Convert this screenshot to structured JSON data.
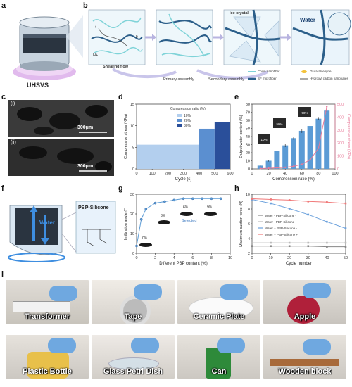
{
  "panel_labels": {
    "a": "a",
    "b": "b",
    "c": "c",
    "d": "d",
    "e": "e",
    "f": "f",
    "g": "g",
    "h": "h",
    "i": "i"
  },
  "panel_a": {
    "device_label": "UHSVS"
  },
  "panel_b": {
    "steps": [
      "Shearing flow",
      "Primary assembly",
      "Secondary assembly"
    ],
    "ice_label": "Ice crystal",
    "water_label": "Water",
    "hplus": "H+",
    "legend": [
      "Chitin nanofiber",
      "Glutaraldehyde",
      "SF microfiber",
      "Hydroxyl carbon nanotubes"
    ],
    "colors": {
      "chitin": "#7fd3d8",
      "sf": "#2c5f8a",
      "glut": "#f3c23a",
      "cnt": "#555555",
      "arrow": "#b8b4e0"
    }
  },
  "panel_c": {
    "sub": [
      "(i)",
      "(ii)"
    ],
    "scalebar": "300μm"
  },
  "panel_f": {
    "water_label": "Water",
    "polymer_label": "PBP-Silicone"
  },
  "panel_i": {
    "photos": [
      "Transformer",
      "Tape",
      "Ceramic Plate",
      "Apple",
      "Plastic Bottle",
      "Glass Petri Dish",
      "Can",
      "Wooden block"
    ]
  },
  "chart_data": [
    {
      "id": "d",
      "type": "bar",
      "xlabel": "Cycle (s)",
      "ylabel": "Compressive stress (KPa)",
      "xticks": [
        "0",
        "100",
        "200",
        "300",
        "400",
        "500",
        "600"
      ],
      "yticks": [
        "0",
        "5",
        "10",
        "15"
      ],
      "ylim": [
        0,
        15
      ],
      "xlim": [
        0,
        600
      ],
      "legend_title": "Compression ratio (%)",
      "series": [
        {
          "name": "10%",
          "x_range": [
            0,
            400
          ],
          "value": 5.6,
          "color": "#b3cfee"
        },
        {
          "name": "20%",
          "x_range": [
            400,
            500
          ],
          "value": 9.3,
          "color": "#5b8fd0"
        },
        {
          "name": "30%",
          "x_range": [
            500,
            600
          ],
          "value": 10.8,
          "color": "#2a4f9a"
        }
      ]
    },
    {
      "id": "e",
      "type": "bar",
      "xlabel": "Compression ratio (%)",
      "ylabel": "Output water content (%)",
      "y2label": "Compressive stress (KPa)",
      "categories": [
        10,
        20,
        30,
        40,
        50,
        60,
        70,
        80,
        90
      ],
      "values": [
        4,
        10,
        22,
        29,
        38,
        47,
        53,
        62,
        72
      ],
      "errors": [
        1,
        1,
        1.5,
        2,
        2,
        2.5,
        2.5,
        2,
        1.5
      ],
      "stress_x": [
        10,
        20,
        30,
        40,
        50,
        60,
        70,
        80,
        90
      ],
      "stress_y": [
        3,
        5,
        8,
        12,
        20,
        35,
        70,
        160,
        480
      ],
      "xticks": [
        "0",
        "20",
        "40",
        "60",
        "80",
        "100"
      ],
      "yticks": [
        "0",
        "10",
        "20",
        "30",
        "40",
        "50",
        "60",
        "70",
        "80"
      ],
      "y2ticks": [
        "0",
        "100",
        "200",
        "300",
        "400",
        "500"
      ],
      "ylim": [
        0,
        80
      ],
      "y2lim": [
        0,
        500
      ],
      "xlim": [
        0,
        100
      ],
      "insets": [
        "10%",
        "50%",
        "90%"
      ]
    },
    {
      "id": "g",
      "type": "line",
      "xlabel": "Different PBP content (%)",
      "ylabel": "Infiltration angle (°)",
      "x": [
        0,
        0.5,
        1,
        2,
        3,
        4,
        5,
        6,
        7,
        8,
        9
      ],
      "y": [
        0,
        18,
        25,
        29,
        30,
        31,
        32,
        32,
        32,
        32,
        32
      ],
      "xticks": [
        "0",
        "2",
        "4",
        "6",
        "8",
        "10"
      ],
      "yticks": [
        "0",
        "10",
        "20",
        "30"
      ],
      "ylim": [
        -5,
        35
      ],
      "xlim": [
        0,
        10
      ],
      "annotations": [
        "0%",
        "3%",
        "6%",
        "9%"
      ],
      "selected_label": "Selected"
    },
    {
      "id": "h",
      "type": "line",
      "xlabel": "Cycle number",
      "ylabel": "Maximum suction force (N)",
      "xticks": [
        "0",
        "10",
        "20",
        "30",
        "40",
        "50"
      ],
      "yticks": [
        "2",
        "4",
        "6",
        "8",
        "10"
      ],
      "ylim": [
        1,
        10
      ],
      "xlim": [
        0,
        50
      ],
      "series": [
        {
          "name": "Water - PBP-Silicone -",
          "color": "#888888",
          "x": [
            0,
            10,
            20,
            30,
            40,
            50
          ],
          "y": [
            2.1,
            2.1,
            2.1,
            2.1,
            2.0,
            2.0
          ]
        },
        {
          "name": "Water - PBP-Silicone +",
          "color": "#bbbbbb",
          "x": [
            0,
            10,
            20,
            30,
            40,
            50
          ],
          "y": [
            2.6,
            2.6,
            2.6,
            2.6,
            2.6,
            2.6
          ]
        },
        {
          "name": "Water + PBP-Silicone -",
          "color": "#6aa0dc",
          "x": [
            0,
            10,
            20,
            30,
            40,
            50
          ],
          "y": [
            9.2,
            8.6,
            7.8,
            6.9,
            5.8,
            4.8
          ]
        },
        {
          "name": "Water + PBP-Silicone +",
          "color": "#f07878",
          "x": [
            0,
            10,
            20,
            30,
            40,
            50
          ],
          "y": [
            9.3,
            9.2,
            9.1,
            8.9,
            8.8,
            8.6
          ]
        }
      ]
    }
  ]
}
